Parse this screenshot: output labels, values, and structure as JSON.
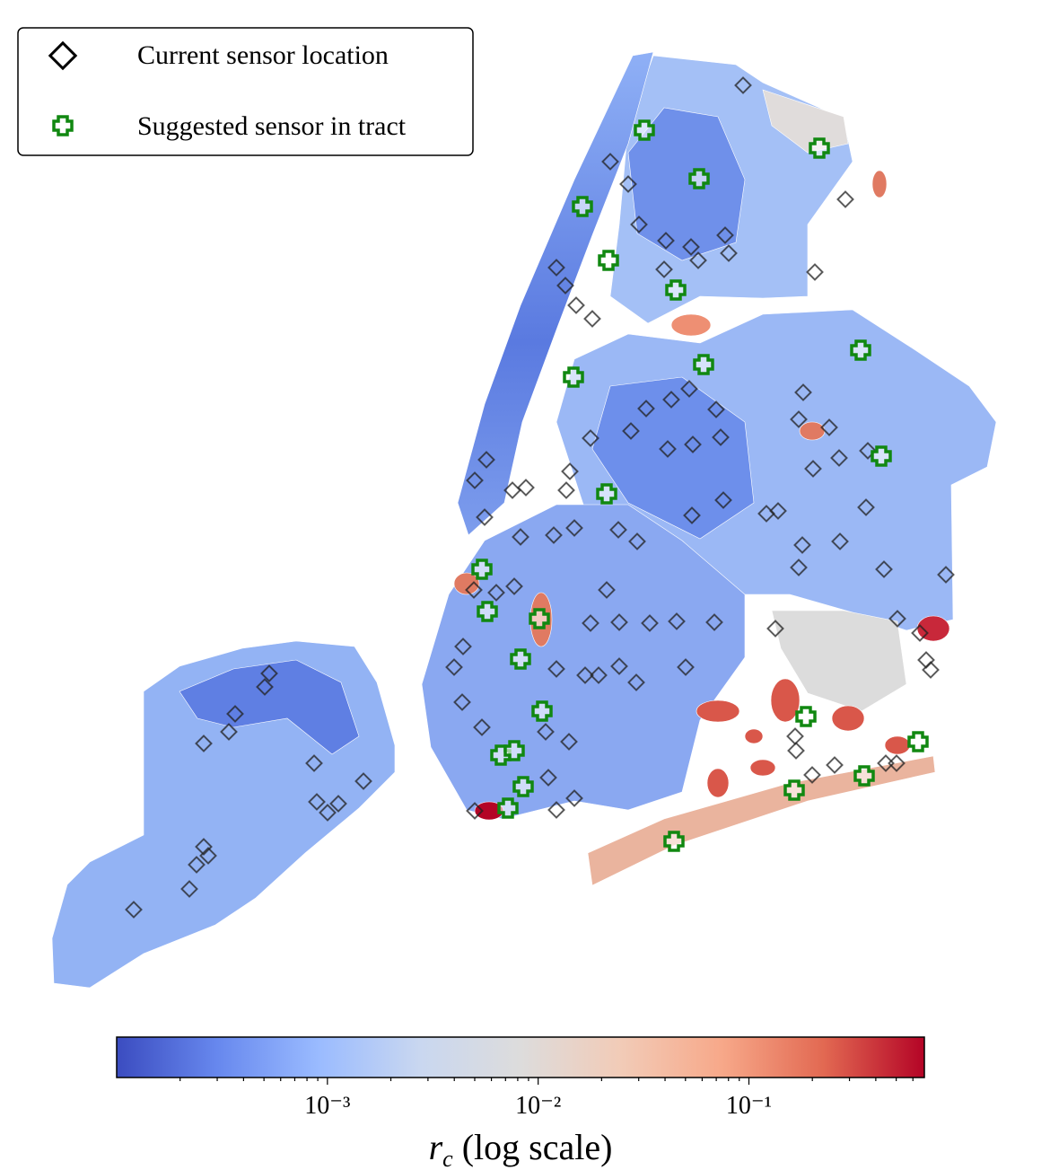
{
  "legend": {
    "entries": [
      "Current sensor location",
      "Suggested sensor in tract"
    ]
  },
  "colorbar": {
    "scale": "log",
    "lim": [
      0.0001,
      0.68
    ],
    "colors": [
      "#3b4cc0",
      "#6788ee",
      "#9abbff",
      "#c9d7f0",
      "#dddcdc",
      "#f2cbb7",
      "#f7a889",
      "#e26952",
      "#b40426"
    ],
    "ticks": [
      {
        "value": 0.001,
        "label": "10⁻³"
      },
      {
        "value": 0.01,
        "label": "10⁻²"
      },
      {
        "value": 0.1,
        "label": "10⁻¹"
      }
    ],
    "minor_ticks": [
      0.0002,
      0.0003,
      0.0004,
      0.0005,
      0.0006,
      0.0007,
      0.0008,
      0.0009,
      0.002,
      0.003,
      0.004,
      0.005,
      0.006,
      0.007,
      0.008,
      0.009,
      0.02,
      0.03,
      0.04,
      0.05,
      0.06,
      0.07,
      0.08,
      0.09,
      0.2,
      0.3,
      0.4,
      0.5,
      0.6
    ],
    "label": {
      "symbol": "r",
      "subscript": "c",
      "text": "(log scale)"
    }
  }
}
